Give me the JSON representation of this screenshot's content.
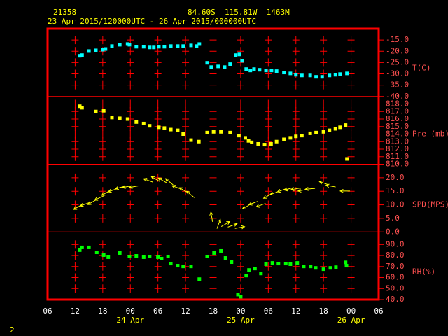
{
  "header": {
    "station": "21358",
    "location": "84.60S  115.81W  1463M",
    "period": "23 Apr 2015/120000UTC - 26 Apr 2015/000000UTC"
  },
  "footer": "2",
  "x_axis": {
    "xlim": [
      6,
      78
    ],
    "xticks": [
      {
        "value": 6,
        "label": "06"
      },
      12,
      18,
      {
        "value": 24,
        "label": "00"
      },
      {
        "value": 30,
        "label": "06"
      },
      {
        "value": 36,
        "label": "12"
      },
      {
        "value": 42,
        "label": "18"
      },
      {
        "value": 48,
        "label": "00"
      },
      {
        "value": 54,
        "label": "06"
      },
      {
        "value": 60,
        "label": "12"
      },
      {
        "value": 66,
        "label": "18"
      },
      {
        "value": 72,
        "label": "00"
      },
      {
        "value": 78,
        "label": "06"
      }
    ],
    "date_labels": [
      {
        "value": 24,
        "label": "24 Apr"
      },
      {
        "value": 48,
        "label": "25 Apr"
      },
      {
        "value": 72,
        "label": "26 Apr"
      }
    ]
  },
  "chart_data": [
    {
      "type": "scatter",
      "ylabel": "T(C)",
      "ylim": [
        -40,
        -10
      ],
      "yticks": [
        {
          "value": -15,
          "label": "-15.0"
        },
        {
          "value": -20,
          "label": "-20.0"
        },
        {
          "value": -25,
          "label": "-25.0"
        },
        {
          "value": -30,
          "label": "-30.0"
        },
        {
          "value": -35,
          "label": "-35.0"
        },
        {
          "value": -40,
          "label": "-40.0"
        }
      ],
      "series": [
        {
          "color": "#00ffff",
          "x": [
            13.0,
            13.5,
            15.0,
            16.5,
            18.0,
            18.6,
            20.0,
            21.7,
            23.4,
            23.8,
            25.3,
            26.9,
            28.2,
            29.1,
            30.2,
            31.4,
            32.8,
            34.3,
            35.5,
            37.2,
            38.4,
            39.0,
            40.7,
            41.6,
            43.1,
            44.5,
            45.7,
            46.9,
            47.7,
            48.3,
            49.2,
            50.1,
            50.9,
            52.1,
            53.5,
            54.7,
            55.8,
            57.4,
            58.8,
            60.0,
            61.3,
            63.1,
            64.4,
            65.7,
            67.3,
            68.6,
            69.6,
            71.1
          ],
          "values": [
            -22.0,
            -21.7,
            -19.9,
            -19.6,
            -19.3,
            -19.0,
            -17.7,
            -17.1,
            -16.8,
            -17.1,
            -18.0,
            -18.0,
            -18.3,
            -18.3,
            -18.0,
            -18.0,
            -17.7,
            -17.7,
            -17.7,
            -17.4,
            -17.7,
            -16.8,
            -25.1,
            -27.0,
            -26.7,
            -27.0,
            -25.7,
            -21.7,
            -21.4,
            -24.2,
            -27.9,
            -28.5,
            -27.9,
            -28.2,
            -28.5,
            -28.5,
            -28.8,
            -29.4,
            -29.8,
            -30.4,
            -30.7,
            -30.7,
            -31.3,
            -31.3,
            -30.7,
            -30.4,
            -30.1,
            -29.8
          ]
        }
      ]
    },
    {
      "type": "scatter",
      "ylabel": "Pre (mb)",
      "ylim": [
        810,
        819
      ],
      "yticks": [
        {
          "value": 818,
          "label": "818.0"
        },
        {
          "value": 817,
          "label": "817.0"
        },
        {
          "value": 816,
          "label": "816.0"
        },
        {
          "value": 815,
          "label": "815.0"
        },
        {
          "value": 814,
          "label": "814.0"
        },
        {
          "value": 813,
          "label": "813.0"
        },
        {
          "value": 812,
          "label": "812.0"
        },
        {
          "value": 811,
          "label": "811.0"
        },
        {
          "value": 810,
          "label": "810.0"
        }
      ],
      "series": [
        {
          "color": "#ffff00",
          "x": [
            13.0,
            13.5,
            16.5,
            18.2,
            20.0,
            21.7,
            23.4,
            25.3,
            26.9,
            28.2,
            30.2,
            31.4,
            32.8,
            34.3,
            35.5,
            37.2,
            38.9,
            40.7,
            42.1,
            43.7,
            45.7,
            47.6,
            49.0,
            49.7,
            50.4,
            51.8,
            53.2,
            54.6,
            55.8,
            57.4,
            58.8,
            60.0,
            61.3,
            63.1,
            64.4,
            66.0,
            67.3,
            68.6,
            69.6,
            70.8,
            71.1
          ],
          "values": [
            817.7,
            817.5,
            817.0,
            817.1,
            816.2,
            816.1,
            816.0,
            815.6,
            815.4,
            815.1,
            814.9,
            814.8,
            814.6,
            814.5,
            814.0,
            813.2,
            813.0,
            814.2,
            814.3,
            814.3,
            814.2,
            813.8,
            813.5,
            813.1,
            812.9,
            812.7,
            812.6,
            812.7,
            813.0,
            813.3,
            813.5,
            813.7,
            813.8,
            814.1,
            814.2,
            814.3,
            814.5,
            814.7,
            814.9,
            815.2,
            810.7
          ]
        }
      ]
    },
    {
      "type": "vector",
      "ylabel": "SPD(MPS)",
      "ylim": [
        0,
        25
      ],
      "yticks": [
        {
          "value": 20,
          "label": "20.0"
        },
        {
          "value": 15,
          "label": "15.0"
        },
        {
          "value": 10,
          "label": "10.0"
        },
        {
          "value": 5,
          "label": "5.0"
        },
        {
          "value": 0,
          "label": "0.0"
        }
      ],
      "series": [
        {
          "color": "#ffff00",
          "x": [
            12.6,
            14.1,
            15.7,
            17.2,
            18.7,
            20.2,
            21.8,
            23.3,
            24.8,
            27.9,
            29.5,
            31.0,
            32.5,
            34.1,
            35.6,
            37.1,
            41.7,
            43.2,
            44.7,
            46.2,
            47.8,
            49.3,
            50.8,
            52.4,
            53.9,
            55.4,
            57.0,
            58.5,
            60.0,
            61.5,
            63.1,
            66.1,
            67.6,
            70.7
          ],
          "values": [
            9.2,
            10.2,
            11.0,
            12.5,
            14.4,
            15.4,
            16.4,
            16.7,
            16.7,
            19.0,
            19.5,
            19.0,
            18.5,
            16.4,
            15.4,
            13.8,
            5.5,
            2.9,
            2.9,
            2.4,
            1.6,
            9.4,
            10.7,
            9.9,
            13.3,
            14.4,
            15.4,
            15.9,
            15.9,
            15.4,
            15.9,
            18.0,
            16.9,
            15.1
          ],
          "directions": [
            60,
            70,
            60,
            65,
            60,
            70,
            75,
            80,
            80,
            110,
            120,
            120,
            130,
            110,
            120,
            130,
            170,
            200,
            240,
            250,
            260,
            60,
            70,
            70,
            60,
            70,
            70,
            75,
            80,
            80,
            85,
            110,
            100,
            90
          ]
        }
      ]
    },
    {
      "type": "scatter",
      "ylabel": "RH(%)",
      "ylim": [
        40,
        101.5
      ],
      "yticks": [
        {
          "value": 90,
          "label": "90.0"
        },
        {
          "value": 80,
          "label": "80.0"
        },
        {
          "value": 70,
          "label": "70.0"
        },
        {
          "value": 60,
          "label": "60.0"
        },
        {
          "value": 50,
          "label": "50.0"
        },
        {
          "value": 40,
          "label": "40.0"
        }
      ],
      "series": [
        {
          "color": "#00ff00",
          "x": [
            13.0,
            13.5,
            15.0,
            16.7,
            18.2,
            19.2,
            21.7,
            23.8,
            25.3,
            26.9,
            28.2,
            30.0,
            30.8,
            32.2,
            32.8,
            34.3,
            35.5,
            37.2,
            39.0,
            40.7,
            42.2,
            43.7,
            44.7,
            46.0,
            47.4,
            48.0,
            49.2,
            49.8,
            51.1,
            52.4,
            53.5,
            54.9,
            56.2,
            57.8,
            58.8,
            60.3,
            61.7,
            63.2,
            64.3,
            66.0,
            67.5,
            68.7,
            70.8,
            71.0
          ],
          "values": [
            84.9,
            87.4,
            87.4,
            82.9,
            80.4,
            78.5,
            82.3,
            79.1,
            79.7,
            78.5,
            79.1,
            78.5,
            77.2,
            79.1,
            72.7,
            70.8,
            70.1,
            70.1,
            58.6,
            79.1,
            82.3,
            84.2,
            77.8,
            74.0,
            44.5,
            42.6,
            61.8,
            66.9,
            68.2,
            63.7,
            72.1,
            73.3,
            72.7,
            72.7,
            72.1,
            73.3,
            70.1,
            70.1,
            68.8,
            67.6,
            68.8,
            69.4,
            73.8,
            70.8
          ]
        }
      ]
    }
  ]
}
